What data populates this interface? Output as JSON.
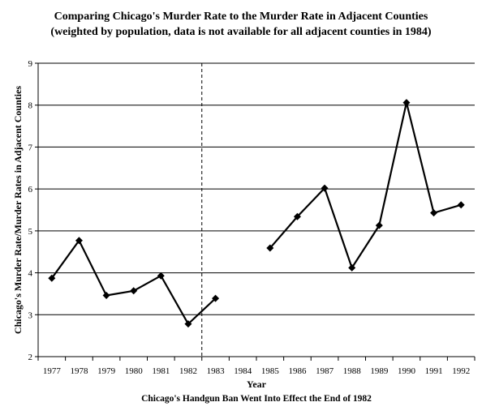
{
  "chart_data": {
    "type": "line",
    "title": "Comparing Chicago's Murder Rate to the Murder Rate in Adjacent Counties",
    "subtitle": "(weighted by population, data is not available for all adjacent counties in 1984)",
    "xlabel": "Year",
    "ylabel": "Chicago's Murder Rate/Murder Rates in Adjacent Counties",
    "annotation": "Chicago's Handgun Ban Went Into Effect the End of 1982",
    "categories": [
      "1977",
      "1978",
      "1979",
      "1980",
      "1981",
      "1982",
      "1983",
      "1984",
      "1985",
      "1986",
      "1987",
      "1988",
      "1989",
      "1990",
      "1991",
      "1992"
    ],
    "values": [
      3.87,
      4.77,
      3.46,
      3.57,
      3.93,
      2.78,
      3.39,
      null,
      4.59,
      5.34,
      6.02,
      4.12,
      5.13,
      8.06,
      5.43,
      5.62
    ],
    "ylim": [
      2,
      9
    ],
    "yticks": [
      "2",
      "3",
      "4",
      "5",
      "6",
      "7",
      "8",
      "9"
    ],
    "grid": "horizontal",
    "event_marker": {
      "after": "1982",
      "style": "dashed"
    },
    "colors": {
      "line": "#000000",
      "grid": "#000000"
    }
  }
}
